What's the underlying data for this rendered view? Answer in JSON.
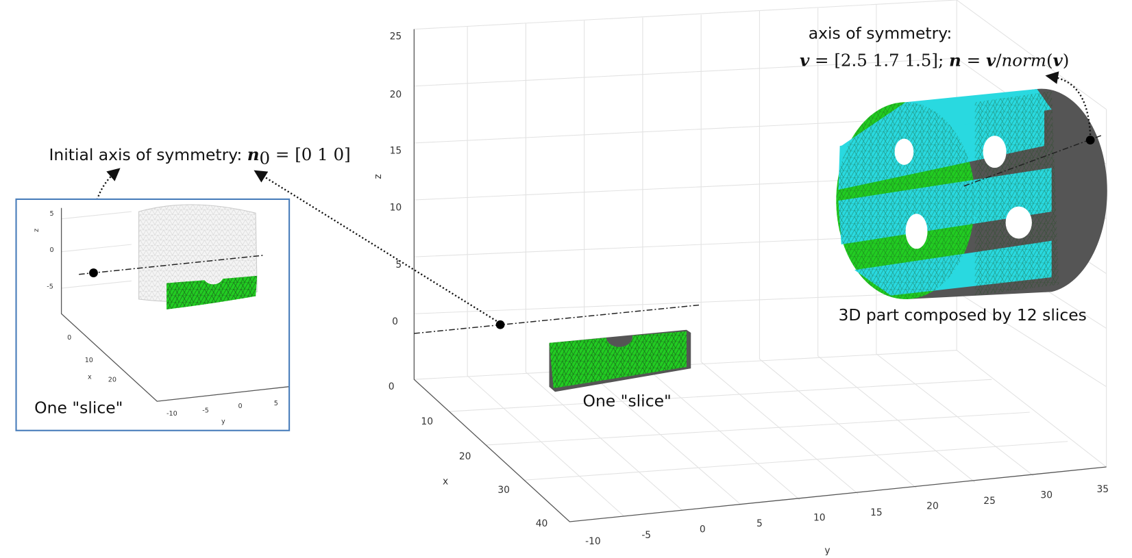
{
  "initial_axis": {
    "label": "Initial axis of symmetry: ",
    "formula": [
      "n",
      "0",
      " = [0 1 0]"
    ]
  },
  "axis_of_symmetry": {
    "label": "axis of symmetry:",
    "formula": [
      "v",
      " = [2.5 1.7 1.5]; ",
      "n",
      " = ",
      "v",
      "/",
      "norm",
      "(",
      "v",
      ")"
    ]
  },
  "part_label": "3D part composed by 12 slices",
  "slice_label": "One \"slice\"",
  "main_plot": {
    "z_label": "z",
    "x_label": "x",
    "y_label": "y",
    "z_ticks": [
      "0",
      "5",
      "10",
      "15",
      "20",
      "25"
    ],
    "x_ticks": [
      "0",
      "10",
      "20",
      "30",
      "40"
    ],
    "y_ticks": [
      "-10",
      "-5",
      "0",
      "5",
      "10",
      "15",
      "20",
      "25",
      "30",
      "35"
    ]
  },
  "inset": {
    "slice_label": "One \"slice\"",
    "z_label": "z",
    "x_label": "x",
    "y_label": "y",
    "z_ticks": [
      "5",
      "0",
      "-5"
    ],
    "x_ticks": [
      "0",
      "10",
      "20"
    ],
    "y_ticks": [
      "-10",
      "-5",
      "0",
      "5"
    ]
  }
}
